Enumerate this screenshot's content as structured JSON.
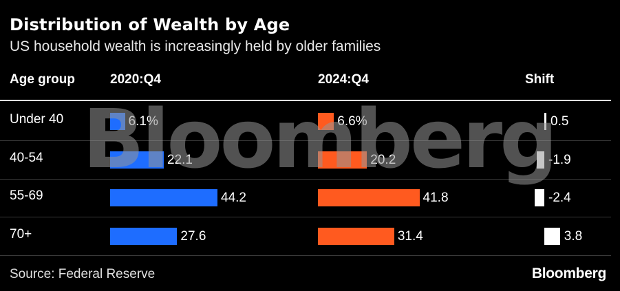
{
  "header": {
    "title": "Distribution of Wealth by Age",
    "subtitle": "US household wealth is increasingly held by older families"
  },
  "columns": {
    "age_group": "Age group",
    "col_2020": "2020:Q4",
    "col_2024": "2024:Q4",
    "shift": "Shift"
  },
  "rows": [
    {
      "label": "Under 40",
      "v2020": "6.1%",
      "v2024": "6.6%",
      "shift": "0.5"
    },
    {
      "label": "40-54",
      "v2020": "22.1",
      "v2024": "20.2",
      "shift": "-1.9"
    },
    {
      "label": "55-69",
      "v2020": "44.2",
      "v2024": "41.8",
      "shift": "-2.4"
    },
    {
      "label": "70+",
      "v2020": "27.6",
      "v2024": "31.4",
      "shift": "3.8"
    }
  ],
  "chart_data": {
    "type": "bar",
    "categories": [
      "Under 40",
      "40-54",
      "55-69",
      "70+"
    ],
    "series": [
      {
        "name": "2020:Q4",
        "values": [
          6.1,
          22.1,
          44.2,
          27.6
        ]
      },
      {
        "name": "2024:Q4",
        "values": [
          6.6,
          20.2,
          41.8,
          31.4
        ]
      },
      {
        "name": "Shift",
        "values": [
          0.5,
          -1.9,
          -2.4,
          3.8
        ]
      }
    ],
    "title": "Distribution of Wealth by Age",
    "subtitle": "US household wealth is increasingly held by older families",
    "unit": "%",
    "colors": {
      "2020:Q4": "#1e6dff",
      "2024:Q4": "#ff5a1f",
      "Shift": "#ffffff"
    }
  },
  "watermark": "Bloomberg",
  "footer": {
    "source": "Source: Federal Reserve",
    "brand": "Bloomberg"
  }
}
